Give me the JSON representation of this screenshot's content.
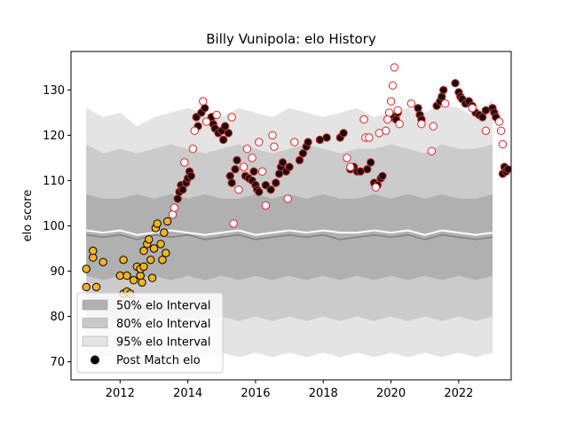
{
  "chart_data": {
    "type": "scatter",
    "title": "Billy Vunipola: elo History",
    "xlabel": "",
    "ylabel": "elo score",
    "xlim": [
      2010.55,
      2023.55
    ],
    "ylim": [
      66.0,
      138.5
    ],
    "x_ticks": [
      2012,
      2014,
      2016,
      2018,
      2020,
      2022
    ],
    "y_ticks": [
      70,
      80,
      90,
      100,
      110,
      120,
      130
    ],
    "grid": false,
    "legend_position": "lower-left",
    "legend": [
      {
        "label": "50% elo Interval",
        "kind": "band",
        "color": "#b0b0b0"
      },
      {
        "label": "80% elo Interval",
        "kind": "band",
        "color": "#c8c8c8"
      },
      {
        "label": "95% elo Interval",
        "kind": "band",
        "color": "#e4e4e4"
      },
      {
        "label": "Post Match elo",
        "kind": "marker",
        "color": "#000000"
      }
    ],
    "colors": {
      "band50": "#b0b0b0",
      "band80": "#cbcbcb",
      "band95": "#e4e4e4",
      "median": "#808080",
      "mean": "#ffffff",
      "early_point": "#f5b324",
      "filled_point": "#111111",
      "point_edge": "#d62728",
      "open_point": "#ffffff"
    },
    "intervals": {
      "x": [
        2011.0,
        2011.5,
        2012.0,
        2012.5,
        2013.0,
        2013.5,
        2014.0,
        2014.5,
        2015.0,
        2015.5,
        2016.0,
        2016.5,
        2017.0,
        2017.5,
        2018.0,
        2018.5,
        2019.0,
        2019.5,
        2020.0,
        2020.5,
        2021.0,
        2021.5,
        2022.0,
        2022.5,
        2023.0
      ],
      "p95_upper": [
        126,
        124,
        125,
        122,
        124,
        125,
        126,
        125,
        124,
        126,
        125,
        124,
        126,
        125,
        124,
        125,
        126,
        124,
        125,
        126,
        125,
        127,
        126,
        124,
        128
      ],
      "p80_upper": [
        118,
        116,
        117,
        116,
        117,
        118,
        117,
        116,
        117,
        118,
        117,
        116,
        117,
        118,
        117,
        116,
        117,
        117,
        118,
        117,
        116,
        118,
        117,
        117,
        118
      ],
      "p50_upper": [
        107,
        106,
        106,
        107,
        106,
        107,
        106,
        107,
        106,
        106,
        107,
        106,
        107,
        106,
        107,
        106,
        106,
        107,
        106,
        107,
        106,
        107,
        106,
        106,
        107
      ],
      "median": [
        98,
        97.5,
        98,
        97,
        98,
        97.5,
        98,
        97,
        97.5,
        98,
        97,
        97.5,
        98,
        97.5,
        98,
        97,
        97.5,
        98,
        97.5,
        98,
        97,
        98,
        97.5,
        97,
        97.5
      ],
      "mean": [
        99,
        98.5,
        99,
        98,
        98.5,
        99,
        98.5,
        98,
        98.5,
        99,
        98,
        98.5,
        99,
        98.5,
        99,
        98.5,
        98.5,
        99,
        98.5,
        99,
        98,
        99,
        98.5,
        98,
        98.5
      ],
      "p50_lower": [
        89,
        88,
        89,
        88,
        89,
        88,
        89,
        88,
        89,
        88,
        89,
        88,
        89,
        88,
        89,
        88,
        89,
        88,
        89,
        88,
        89,
        88,
        89,
        88,
        89
      ],
      "p80_lower": [
        80,
        79,
        80,
        79,
        80,
        78,
        80,
        79,
        80,
        79,
        80,
        79,
        80,
        79,
        80,
        79,
        80,
        79,
        80,
        79,
        80,
        79,
        80,
        79,
        80
      ],
      "p95_lower": [
        72,
        71,
        72,
        70,
        72,
        71,
        72,
        71,
        72,
        71,
        72,
        71,
        72,
        71,
        72,
        71,
        72,
        71,
        72,
        71,
        72,
        71,
        72,
        71,
        72
      ]
    },
    "series": [
      {
        "name": "Post Match elo",
        "style": "early",
        "points": [
          [
            2011.0,
            90.5
          ],
          [
            2011.0,
            86.5
          ],
          [
            2011.2,
            93
          ],
          [
            2011.2,
            94.5
          ],
          [
            2011.3,
            86.5
          ],
          [
            2011.5,
            92
          ],
          [
            2012.0,
            89
          ],
          [
            2012.1,
            92.5
          ],
          [
            2012.1,
            85
          ],
          [
            2012.2,
            89
          ],
          [
            2012.2,
            85.5
          ],
          [
            2012.3,
            85
          ],
          [
            2012.4,
            88
          ],
          [
            2012.5,
            91
          ],
          [
            2012.6,
            89
          ],
          [
            2012.6,
            90.5
          ],
          [
            2012.65,
            87.5
          ],
          [
            2012.7,
            94.5
          ],
          [
            2012.7,
            91
          ],
          [
            2012.8,
            96
          ],
          [
            2012.85,
            97
          ],
          [
            2012.9,
            92.5
          ],
          [
            2012.95,
            88.5
          ],
          [
            2013.0,
            95
          ],
          [
            2013.05,
            99.5
          ],
          [
            2013.1,
            100.5
          ],
          [
            2013.2,
            96
          ],
          [
            2013.25,
            92.5
          ],
          [
            2013.3,
            98.5
          ],
          [
            2013.35,
            94
          ],
          [
            2013.4,
            101
          ]
        ]
      },
      {
        "name": "Post Match elo",
        "style": "filled",
        "points": [
          [
            2013.7,
            106
          ],
          [
            2013.75,
            107.5
          ],
          [
            2013.8,
            109
          ],
          [
            2013.85,
            108
          ],
          [
            2013.95,
            109.5
          ],
          [
            2014.0,
            110.5
          ],
          [
            2014.05,
            112
          ],
          [
            2014.1,
            111
          ],
          [
            2014.25,
            124
          ],
          [
            2014.3,
            122
          ],
          [
            2014.4,
            125
          ],
          [
            2014.5,
            126
          ],
          [
            2014.7,
            124
          ],
          [
            2014.75,
            122.5
          ],
          [
            2014.8,
            121.5
          ],
          [
            2014.9,
            120.5
          ],
          [
            2015.0,
            121
          ],
          [
            2015.05,
            119
          ],
          [
            2015.1,
            122
          ],
          [
            2015.2,
            120.5
          ],
          [
            2015.25,
            111
          ],
          [
            2015.3,
            109.5
          ],
          [
            2015.4,
            112.5
          ],
          [
            2015.45,
            114.5
          ],
          [
            2015.7,
            111
          ],
          [
            2015.8,
            110.5
          ],
          [
            2015.9,
            110
          ],
          [
            2015.95,
            112
          ],
          [
            2016.0,
            109
          ],
          [
            2016.05,
            108
          ],
          [
            2016.1,
            107.5
          ],
          [
            2016.3,
            109
          ],
          [
            2016.45,
            108
          ],
          [
            2016.6,
            109.5
          ],
          [
            2016.7,
            111.5
          ],
          [
            2016.75,
            113
          ],
          [
            2016.8,
            114
          ],
          [
            2016.9,
            112
          ],
          [
            2017.0,
            113
          ],
          [
            2017.3,
            114.5
          ],
          [
            2017.4,
            116
          ],
          [
            2017.5,
            117.5
          ],
          [
            2017.55,
            118.5
          ],
          [
            2017.9,
            119
          ],
          [
            2018.1,
            119.5
          ],
          [
            2018.5,
            119.5
          ],
          [
            2018.6,
            120.5
          ],
          [
            2018.8,
            112.5
          ],
          [
            2018.9,
            113
          ],
          [
            2019.0,
            112
          ],
          [
            2019.1,
            112
          ],
          [
            2019.3,
            112.5
          ],
          [
            2019.4,
            114
          ],
          [
            2019.5,
            109.5
          ],
          [
            2019.6,
            109
          ],
          [
            2019.7,
            110.5
          ],
          [
            2019.75,
            111
          ],
          [
            2020.05,
            124
          ],
          [
            2020.15,
            123.5
          ],
          [
            2020.2,
            125
          ],
          [
            2020.8,
            126
          ],
          [
            2020.85,
            124.5
          ],
          [
            2020.9,
            123.5
          ],
          [
            2021.35,
            126.5
          ],
          [
            2021.45,
            127.5
          ],
          [
            2021.5,
            128.5
          ],
          [
            2021.55,
            130
          ],
          [
            2021.9,
            131.5
          ],
          [
            2022.0,
            129.5
          ],
          [
            2022.05,
            128.5
          ],
          [
            2022.1,
            128
          ],
          [
            2022.2,
            127
          ],
          [
            2022.3,
            127.5
          ],
          [
            2022.4,
            126.5
          ],
          [
            2022.5,
            125
          ],
          [
            2022.6,
            124.5
          ],
          [
            2022.7,
            124
          ],
          [
            2022.8,
            125.5
          ],
          [
            2023.0,
            126
          ],
          [
            2023.05,
            125
          ],
          [
            2023.1,
            124
          ],
          [
            2023.3,
            111.5
          ],
          [
            2023.35,
            113
          ],
          [
            2023.4,
            112
          ],
          [
            2023.45,
            112.5
          ]
        ]
      },
      {
        "name": "Post Match elo",
        "style": "open",
        "points": [
          [
            2013.55,
            102.5
          ],
          [
            2013.6,
            104
          ],
          [
            2013.9,
            114
          ],
          [
            2014.15,
            117
          ],
          [
            2014.2,
            121
          ],
          [
            2014.45,
            127.5
          ],
          [
            2014.55,
            123
          ],
          [
            2014.85,
            124.5
          ],
          [
            2015.3,
            124
          ],
          [
            2015.35,
            100.5
          ],
          [
            2015.5,
            108
          ],
          [
            2015.65,
            113
          ],
          [
            2015.75,
            117
          ],
          [
            2015.9,
            115
          ],
          [
            2016.1,
            118.5
          ],
          [
            2016.2,
            112
          ],
          [
            2016.3,
            104.5
          ],
          [
            2016.5,
            120
          ],
          [
            2016.55,
            117.5
          ],
          [
            2016.95,
            106
          ],
          [
            2017.15,
            118.5
          ],
          [
            2018.7,
            115
          ],
          [
            2018.8,
            113
          ],
          [
            2019.2,
            123.5
          ],
          [
            2019.25,
            119.5
          ],
          [
            2019.35,
            119.5
          ],
          [
            2019.55,
            108.5
          ],
          [
            2019.65,
            120.5
          ],
          [
            2019.85,
            121
          ],
          [
            2019.9,
            123.5
          ],
          [
            2019.95,
            125
          ],
          [
            2020.0,
            127.5
          ],
          [
            2020.05,
            131
          ],
          [
            2020.1,
            135
          ],
          [
            2020.2,
            125.5
          ],
          [
            2020.25,
            122.5
          ],
          [
            2020.6,
            127
          ],
          [
            2020.9,
            122.5
          ],
          [
            2021.2,
            116.5
          ],
          [
            2021.25,
            122
          ],
          [
            2021.6,
            127
          ],
          [
            2022.4,
            126
          ],
          [
            2022.8,
            121
          ],
          [
            2023.2,
            123
          ],
          [
            2023.25,
            121
          ],
          [
            2023.3,
            118
          ]
        ]
      }
    ]
  }
}
